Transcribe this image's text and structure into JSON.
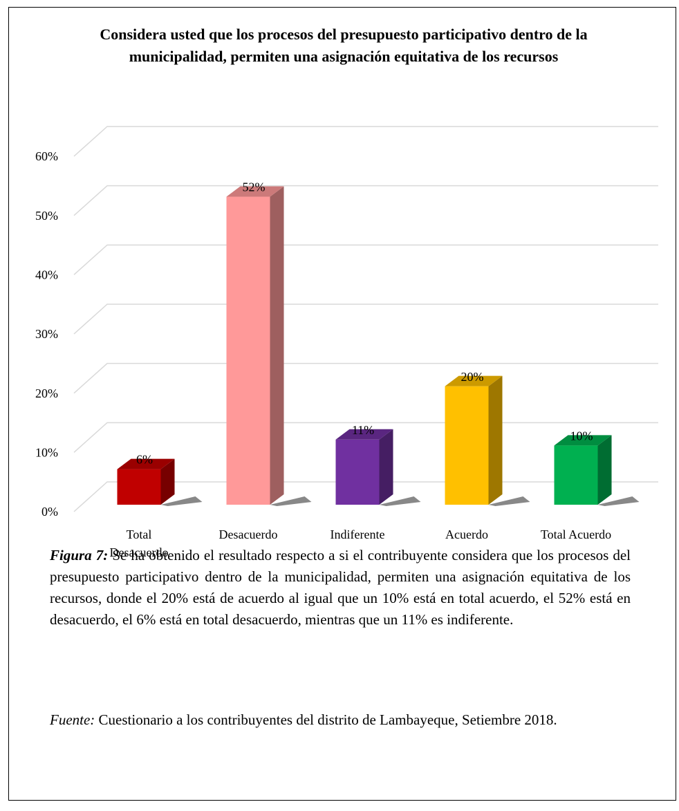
{
  "chart_data": {
    "type": "bar3d",
    "title": "Considera usted que los procesos del presupuesto participativo dentro de la municipalidad, permiten una asignación equitativa de los recursos",
    "categories": [
      "Total Desacuerdo",
      "Desacuerdo",
      "Indiferente",
      "Acuerdo",
      "Total Acuerdo"
    ],
    "values": [
      6,
      52,
      11,
      20,
      10
    ],
    "value_labels": [
      "6%",
      "52%",
      "11%",
      "20%",
      "10%"
    ],
    "colors": [
      "#c00000",
      "#ff9999",
      "#7030a0",
      "#ffc000",
      "#00b050"
    ],
    "ylim": [
      0,
      60
    ],
    "yticks": [
      {
        "value": 0,
        "label": "0%"
      },
      {
        "value": 10,
        "label": "10%"
      },
      {
        "value": 20,
        "label": "20%"
      },
      {
        "value": 30,
        "label": "30%"
      },
      {
        "value": 40,
        "label": "40%"
      },
      {
        "value": 50,
        "label": "50%"
      },
      {
        "value": 60,
        "label": "60%"
      }
    ],
    "grid": true
  },
  "caption": {
    "label": "Figura 7:",
    "text": "Se ha obtenido el resultado respecto a si el contribuyente considera que los procesos del presupuesto participativo dentro de la municipalidad, permiten una asignación equitativa de los recursos, donde el 20% está de acuerdo al igual que un 10% está en total acuerdo, el 52% está en desacuerdo, el 6% está en total desacuerdo, mientras que un 11% es indiferente."
  },
  "source": {
    "label": "Fuente:",
    "text": "Cuestionario a los contribuyentes del distrito de Lambayeque, Setiembre 2018."
  }
}
